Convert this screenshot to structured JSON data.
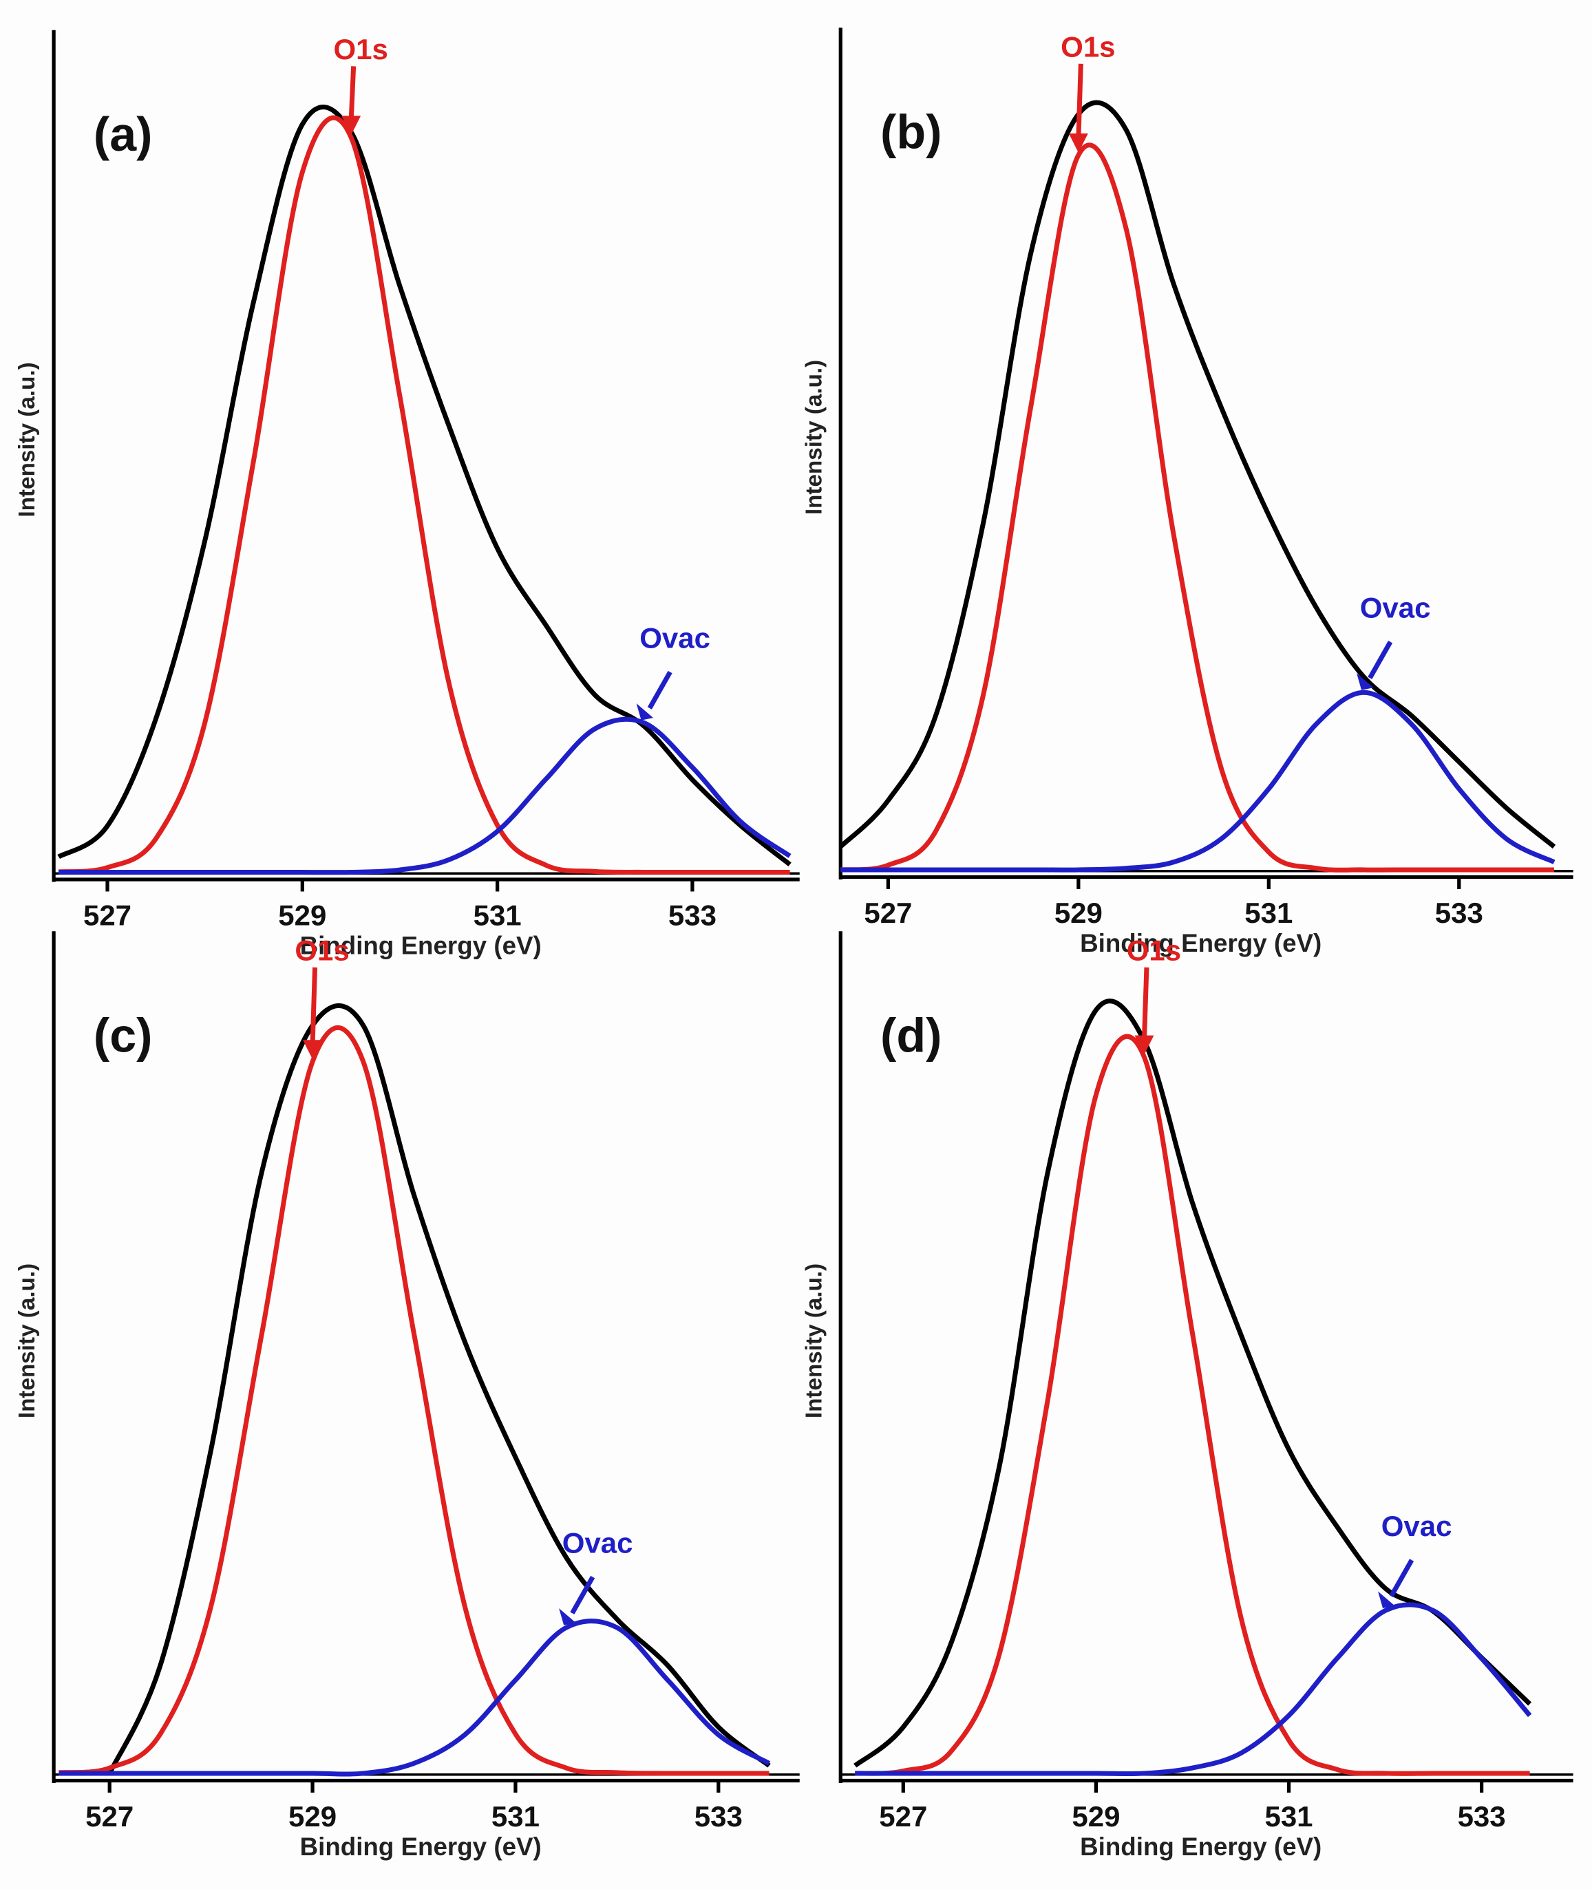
{
  "chart_data": [
    {
      "type": "line",
      "label": "(a)",
      "xlabel": "Binding Energy (eV)",
      "ylabel": "Intensity (a.u.)",
      "x": [
        526.5,
        527,
        527.5,
        528,
        528.5,
        529,
        529.5,
        530,
        530.5,
        531,
        531.5,
        532,
        532.5,
        533,
        533.5,
        534
      ],
      "xlim": [
        526.45,
        534.1
      ],
      "ylim": [
        0,
        100
      ],
      "xticks": [
        527,
        529,
        531,
        533
      ],
      "series": [
        {
          "color": "#000000",
          "values": [
            2,
            6,
            20,
            43,
            74,
            97,
            96,
            76,
            58,
            42,
            32,
            23,
            19,
            12,
            6,
            1
          ]
        },
        {
          "name": "O1s",
          "color": "#e0201f",
          "values": [
            0.05,
            0.6,
            4.4,
            19.4,
            53.4,
            90.8,
            95.3,
            61.7,
            24.7,
            6.1,
            0.9,
            0.1,
            0,
            0,
            0,
            0
          ]
        },
        {
          "name": "Ovac",
          "color": "#1f1fc8",
          "values": [
            0,
            0,
            0,
            0,
            0,
            0,
            0,
            0.3,
            1.6,
            5.3,
            12.1,
            18.6,
            19.4,
            13.6,
            6.5,
            2.1
          ]
        }
      ]
    },
    {
      "type": "line",
      "label": "(b)",
      "xlabel": "Binding Energy (eV)",
      "ylabel": "Intensity (a.u.)",
      "x": [
        526.5,
        527,
        527.5,
        528,
        528.5,
        529,
        529.5,
        530,
        530.5,
        531,
        531.5,
        532,
        532.5,
        533,
        533.5,
        534
      ],
      "xlim": [
        526.5,
        534.2
      ],
      "ylim": [
        0,
        100
      ],
      "xticks": [
        527,
        529,
        531,
        533
      ],
      "series": [
        {
          "color": "#000000",
          "values": [
            3,
            9,
            20,
            45,
            80,
            98,
            96,
            76,
            60,
            46,
            34,
            25,
            20,
            14,
            8,
            3
          ]
        },
        {
          "name": "O1s",
          "color": "#e0201f",
          "values": [
            0,
            0.6,
            5.0,
            22.7,
            60.1,
            92.7,
            83.2,
            43.5,
            13.2,
            2.3,
            0.2,
            0,
            0,
            0,
            0,
            0
          ]
        },
        {
          "name": "Ovac",
          "color": "#1f1fc8",
          "values": [
            0,
            0,
            0,
            0,
            0,
            0,
            0.2,
            1.0,
            4.0,
            10.5,
            18.9,
            23,
            18.9,
            10.5,
            4.0,
            1.0
          ]
        }
      ]
    },
    {
      "type": "line",
      "label": "(c)",
      "xlabel": "Binding Energy (eV)",
      "ylabel": "Intensity (a.u.)",
      "x": [
        526.5,
        527,
        527.5,
        528,
        528.5,
        529,
        529.5,
        530,
        530.5,
        531,
        531.5,
        532,
        532.5,
        533,
        533.5
      ],
      "xlim": [
        526.45,
        533.8
      ],
      "ylim": [
        0,
        100
      ],
      "xticks": [
        527,
        529,
        531,
        533
      ],
      "series": [
        {
          "color": "#000000",
          "values": [
            null,
            0,
            14,
            42,
            78,
            97,
            97,
            75,
            56,
            41,
            28,
            20,
            14,
            6,
            1
          ]
        },
        {
          "name": "O1s",
          "color": "#e0201f",
          "values": [
            0.1,
            0.7,
            5.1,
            21.7,
            57.0,
            92.3,
            92.3,
            57.0,
            21.7,
            5.1,
            0.7,
            0.1,
            0,
            0,
            0
          ]
        },
        {
          "name": "Ovac",
          "color": "#1f1fc8",
          "values": [
            0,
            0,
            0,
            0,
            0,
            0,
            0,
            1.3,
            5.0,
            12.1,
            18.9,
            18.9,
            12.1,
            5.0,
            1.3
          ]
        }
      ]
    },
    {
      "type": "line",
      "label": "(d)",
      "xlabel": "Binding Energy (eV)",
      "ylabel": "Intensity (a.u.)",
      "x": [
        526.5,
        527,
        527.5,
        528,
        528.5,
        529,
        529.5,
        530,
        530.5,
        531,
        531.5,
        532,
        532.5,
        533,
        533.5
      ],
      "xlim": [
        526.35,
        533.95
      ],
      "ylim": [
        0,
        100
      ],
      "xticks": [
        527,
        529,
        531,
        533
      ],
      "series": [
        {
          "color": "#000000",
          "values": [
            1,
            6,
            17,
            40,
            78,
            99,
            95,
            74,
            57,
            42,
            32,
            24,
            21,
            15,
            9
          ]
        },
        {
          "name": "O1s",
          "color": "#e0201f",
          "values": [
            0,
            0.3,
            2.9,
            15.6,
            48.5,
            88.0,
            92.9,
            57.1,
            20.4,
            4.3,
            0.5,
            0,
            0,
            0,
            0
          ]
        },
        {
          "name": "Ovac",
          "color": "#1f1fc8",
          "values": [
            0,
            0,
            0,
            0,
            0,
            0,
            0,
            0.7,
            2.6,
            7.5,
            14.9,
            21.1,
            21.1,
            14.9,
            7.5
          ]
        }
      ]
    }
  ]
}
